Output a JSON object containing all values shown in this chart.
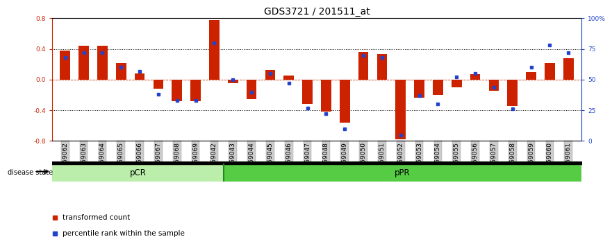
{
  "title": "GDS3721 / 201511_at",
  "samples": [
    "GSM559062",
    "GSM559063",
    "GSM559064",
    "GSM559065",
    "GSM559066",
    "GSM559067",
    "GSM559068",
    "GSM559069",
    "GSM559042",
    "GSM559043",
    "GSM559044",
    "GSM559045",
    "GSM559046",
    "GSM559047",
    "GSM559048",
    "GSM559049",
    "GSM559050",
    "GSM559051",
    "GSM559052",
    "GSM559053",
    "GSM559054",
    "GSM559055",
    "GSM559056",
    "GSM559057",
    "GSM559058",
    "GSM559059",
    "GSM559060",
    "GSM559061"
  ],
  "bar_values": [
    0.38,
    0.44,
    0.44,
    0.22,
    0.08,
    -0.12,
    -0.28,
    -0.28,
    0.78,
    -0.05,
    -0.25,
    0.13,
    0.05,
    -0.32,
    -0.42,
    -0.56,
    0.36,
    0.33,
    -0.78,
    -0.24,
    -0.2,
    -0.1,
    0.07,
    -0.15,
    -0.34,
    0.1,
    0.22,
    0.28
  ],
  "percentile_values": [
    68,
    72,
    72,
    60,
    57,
    38,
    33,
    33,
    80,
    50,
    40,
    55,
    47,
    27,
    22,
    10,
    70,
    68,
    5,
    37,
    30,
    52,
    55,
    44,
    26,
    60,
    78,
    72
  ],
  "n_pCR": 9,
  "pCR_label": "pCR",
  "pPR_label": "pPR",
  "disease_state_label": "disease state",
  "ylim_left": [
    -0.8,
    0.8
  ],
  "ylim_right": [
    0,
    100
  ],
  "yticks_left": [
    -0.8,
    -0.4,
    0.0,
    0.4,
    0.8
  ],
  "yticks_right": [
    0,
    25,
    50,
    75,
    100
  ],
  "ytick_labels_right": [
    "0",
    "25",
    "50",
    "75",
    "100%"
  ],
  "hlines_dotted": [
    -0.4,
    0.4
  ],
  "bar_color": "#cc2200",
  "dot_color": "#2244cc",
  "pCR_color": "#bbeeaa",
  "pPR_color": "#55cc44",
  "legend_bar_label": "transformed count",
  "legend_dot_label": "percentile rank within the sample",
  "title_fontsize": 10,
  "tick_fontsize": 6.5,
  "bar_width": 0.55
}
